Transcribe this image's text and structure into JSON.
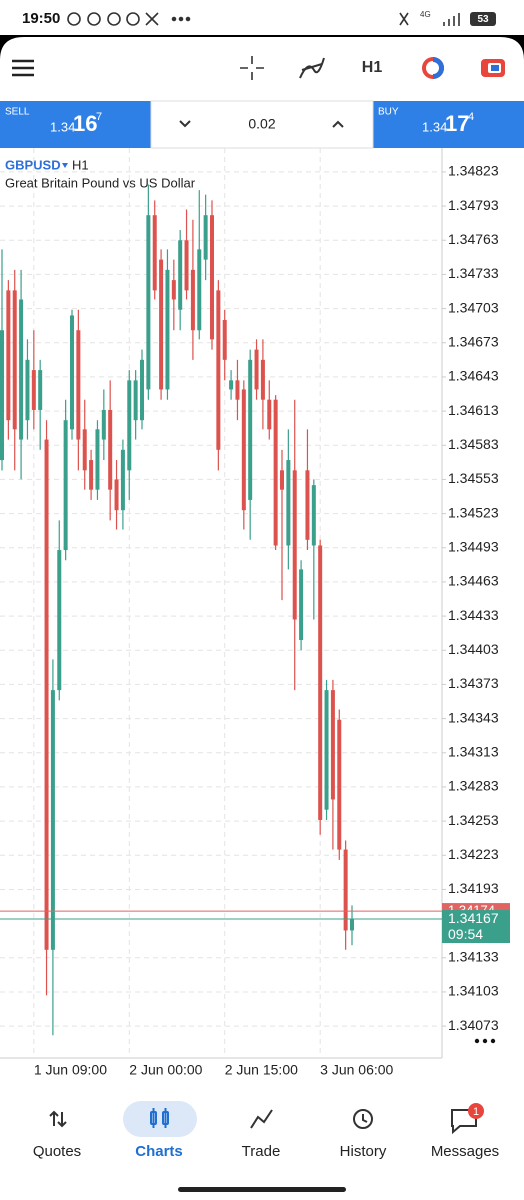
{
  "status_bar": {
    "time": "19:50",
    "network": "4G",
    "battery": "53"
  },
  "toolbar": {
    "timeframe": "H1"
  },
  "quote_bar": {
    "sell": {
      "label": "SELL",
      "price_main": "1.34",
      "price_big": "16",
      "price_small": "7"
    },
    "volume": "0.02",
    "buy": {
      "label": "BUY",
      "price_main": "1.34",
      "price_big": "17",
      "price_small": "4"
    }
  },
  "chart_data": {
    "type": "candlestick",
    "symbol": "GBPUSD",
    "timeframe": "H1",
    "description": "Great Britain Pound vs US Dollar",
    "categories": [
      null,
      null,
      null,
      null,
      null,
      "1 Jun 09:00",
      null,
      null,
      null,
      null,
      null,
      null,
      null,
      null,
      null,
      null,
      null,
      null,
      null,
      null,
      "2 Jun 00:00",
      null,
      null,
      null,
      null,
      null,
      null,
      null,
      null,
      null,
      null,
      null,
      null,
      null,
      null,
      "2 Jun 15:00",
      null,
      null,
      null,
      null,
      null,
      null,
      null,
      null,
      null,
      null,
      null,
      null,
      null,
      null,
      "3 Jun 06:00",
      null,
      null,
      null,
      null,
      null
    ],
    "open": [
      1.3457,
      1.34719,
      1.34719,
      1.34588,
      1.34605,
      1.34649,
      1.34614,
      1.34588,
      1.3414,
      1.34368,
      1.34491,
      1.34597,
      1.34684,
      1.34597,
      1.3457,
      1.34544,
      1.34588,
      1.34614,
      1.34553,
      1.34526,
      1.34561,
      1.34605,
      1.34605,
      1.34632,
      1.34785,
      1.34746,
      1.34632,
      1.34728,
      1.34702,
      1.34763,
      1.34737,
      1.34684,
      1.34746,
      1.34785,
      1.34719,
      1.34693,
      1.34632,
      1.3464,
      1.34632,
      1.34535,
      1.34667,
      1.34658,
      1.34623,
      1.34623,
      1.34561,
      1.34495,
      1.34561,
      1.34412,
      1.34561,
      1.34495,
      1.34495,
      1.34263,
      1.34368,
      1.34342,
      1.34228,
      1.34157
    ],
    "high": [
      1.34755,
      1.34728,
      1.34737,
      1.34737,
      1.34676,
      1.34684,
      1.34658,
      1.34605,
      1.34395,
      1.34517,
      1.34623,
      1.34702,
      1.34702,
      1.34623,
      1.34579,
      1.34605,
      1.34632,
      1.3464,
      1.3457,
      1.34588,
      1.34649,
      1.34649,
      1.34667,
      1.34812,
      1.34798,
      1.34755,
      1.34755,
      1.34746,
      1.34772,
      1.3479,
      1.34781,
      1.34807,
      1.34803,
      1.34798,
      1.34728,
      1.34702,
      1.34649,
      1.34658,
      1.3464,
      1.34667,
      1.34676,
      1.34676,
      1.3464,
      1.34627,
      1.34579,
      1.34597,
      1.34623,
      1.34482,
      1.34597,
      1.34553,
      1.345,
      1.34377,
      1.34377,
      1.34351,
      1.34236,
      1.34179
    ],
    "low": [
      1.34561,
      1.34588,
      1.34561,
      1.34553,
      1.34588,
      1.34597,
      1.34579,
      1.341,
      1.34065,
      1.34359,
      1.34482,
      1.34588,
      1.34561,
      1.34544,
      1.34535,
      1.34535,
      1.3457,
      1.34517,
      1.34509,
      1.34509,
      1.34535,
      1.34588,
      1.34597,
      1.34623,
      1.34711,
      1.34623,
      1.34623,
      1.34684,
      1.34684,
      1.34711,
      1.34658,
      1.34676,
      1.34728,
      1.34667,
      1.34561,
      1.3464,
      1.34623,
      1.34605,
      1.34509,
      1.345,
      1.34623,
      1.34597,
      1.34588,
      1.34491,
      1.34447,
      1.34474,
      1.34368,
      1.34403,
      1.34491,
      1.3443,
      1.34241,
      1.34254,
      1.34228,
      1.34219,
      1.3414,
      1.34144
    ],
    "close": [
      1.34684,
      1.34605,
      1.34597,
      1.34711,
      1.34658,
      1.34614,
      1.34649,
      1.3414,
      1.34368,
      1.34491,
      1.34605,
      1.34697,
      1.34588,
      1.34561,
      1.34544,
      1.34597,
      1.34614,
      1.34544,
      1.34526,
      1.34579,
      1.3464,
      1.3464,
      1.34658,
      1.34785,
      1.34719,
      1.34632,
      1.34737,
      1.34711,
      1.34763,
      1.34719,
      1.34684,
      1.34755,
      1.34785,
      1.34676,
      1.34579,
      1.34658,
      1.3464,
      1.34623,
      1.34526,
      1.34658,
      1.34632,
      1.34623,
      1.34597,
      1.34495,
      1.34544,
      1.3457,
      1.3443,
      1.34474,
      1.345,
      1.34548,
      1.34254,
      1.34368,
      1.34272,
      1.34228,
      1.34157,
      1.34167
    ],
    "up_color": "#3aa08c",
    "down_color": "#dc524e",
    "ylim": [
      1.34045,
      1.34844
    ],
    "yticks": [
      1.34823,
      1.34793,
      1.34763,
      1.34733,
      1.34703,
      1.34673,
      1.34643,
      1.34613,
      1.34583,
      1.34553,
      1.34523,
      1.34493,
      1.34463,
      1.34433,
      1.34403,
      1.34373,
      1.34343,
      1.34313,
      1.34283,
      1.34253,
      1.34223,
      1.34193,
      1.34133,
      1.34103,
      1.34073
    ],
    "grid": true,
    "bid": 1.34167,
    "bid_time": "09:54",
    "ask": 1.34174,
    "bid_color": "#3aa08c",
    "ask_color": "#e06562"
  },
  "nav": {
    "items": [
      {
        "label": "Quotes"
      },
      {
        "label": "Charts"
      },
      {
        "label": "Trade"
      },
      {
        "label": "History"
      },
      {
        "label": "Messages"
      }
    ],
    "badge": 1
  }
}
